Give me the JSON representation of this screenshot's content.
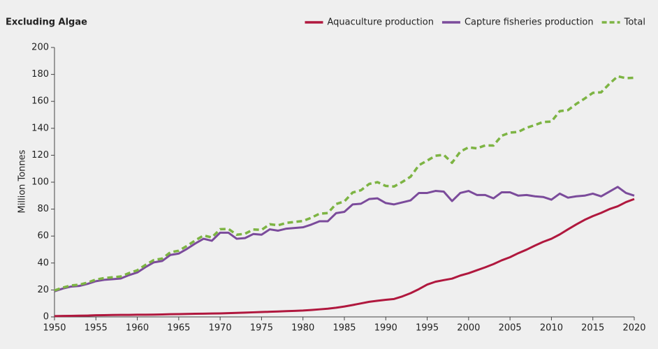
{
  "chart_data": {
    "type": "line",
    "title": "Excluding Algae",
    "ylabel": "Million Tonnes",
    "x": [
      1950,
      1951,
      1952,
      1953,
      1954,
      1955,
      1956,
      1957,
      1958,
      1959,
      1960,
      1961,
      1962,
      1963,
      1964,
      1965,
      1966,
      1967,
      1968,
      1969,
      1970,
      1971,
      1972,
      1973,
      1974,
      1975,
      1976,
      1977,
      1978,
      1979,
      1980,
      1981,
      1982,
      1983,
      1984,
      1985,
      1986,
      1987,
      1988,
      1989,
      1990,
      1991,
      1992,
      1993,
      1994,
      1995,
      1996,
      1997,
      1998,
      1999,
      2000,
      2001,
      2002,
      2003,
      2004,
      2005,
      2006,
      2007,
      2008,
      2009,
      2010,
      2011,
      2012,
      2013,
      2014,
      2015,
      2016,
      2017,
      2018,
      2019,
      2020
    ],
    "series": [
      {
        "name": "Aquaculture production",
        "color": "#b0183e",
        "dashed": false,
        "values": [
          0.6,
          0.7,
          0.8,
          0.9,
          1.0,
          1.2,
          1.3,
          1.4,
          1.5,
          1.5,
          1.6,
          1.6,
          1.7,
          1.8,
          2.0,
          2.1,
          2.2,
          2.3,
          2.4,
          2.5,
          2.6,
          2.8,
          3.0,
          3.2,
          3.4,
          3.6,
          3.8,
          4.0,
          4.3,
          4.5,
          4.7,
          5.1,
          5.6,
          6.1,
          6.8,
          7.7,
          8.8,
          10.0,
          11.2,
          12.0,
          12.7,
          13.3,
          15.2,
          17.6,
          20.6,
          24.0,
          26.1,
          27.3,
          28.4,
          30.7,
          32.4,
          34.6,
          36.8,
          39.2,
          42.0,
          44.3,
          47.3,
          49.9,
          52.9,
          55.7,
          58.0,
          61.2,
          65.0,
          68.6,
          72.0,
          74.8,
          77.2,
          80.0,
          82.1,
          85.2,
          87.5
        ]
      },
      {
        "name": "Capture fisheries production",
        "color": "#7b4b9b",
        "dashed": false,
        "values": [
          19,
          21,
          22.5,
          23,
          24.5,
          26.5,
          27.5,
          28,
          28.5,
          31,
          33,
          37,
          40.5,
          41.5,
          46,
          47,
          50.5,
          54.5,
          58,
          56.5,
          62.5,
          62.5,
          58,
          58.5,
          61.5,
          61,
          65,
          64,
          65.5,
          66,
          66.5,
          68.5,
          71,
          71,
          77,
          78,
          83.5,
          84,
          87.5,
          88,
          84.5,
          83.5,
          85,
          86.5,
          92,
          92,
          93.5,
          93,
          86,
          92,
          93.5,
          90.5,
          90.5,
          88,
          92.5,
          92.5,
          90,
          90.5,
          89.5,
          89,
          87,
          91.5,
          88.5,
          89.5,
          90,
          91.5,
          89.5,
          93,
          96.5,
          92,
          90
        ]
      },
      {
        "name": "Total",
        "color": "#7db443",
        "dashed": true,
        "values": [
          19.6,
          21.7,
          23.3,
          23.9,
          25.5,
          27.7,
          28.8,
          29.4,
          30.0,
          32.5,
          34.6,
          38.6,
          42.2,
          43.3,
          48.0,
          49.1,
          52.7,
          56.8,
          60.4,
          59.0,
          65.1,
          65.3,
          61.0,
          61.7,
          64.9,
          64.6,
          68.8,
          68.0,
          69.8,
          70.5,
          71.2,
          73.6,
          76.6,
          77.1,
          83.8,
          85.7,
          92.3,
          94.0,
          98.7,
          100.0,
          97.2,
          96.8,
          100.2,
          104.1,
          112.6,
          116.0,
          119.6,
          120.3,
          114.4,
          122.7,
          125.9,
          125.1,
          127.3,
          127.2,
          134.5,
          136.8,
          137.3,
          140.4,
          142.4,
          144.7,
          145.0,
          152.7,
          153.5,
          158.1,
          162.0,
          166.3,
          166.7,
          173.0,
          178.6,
          177.2,
          177.5
        ]
      }
    ],
    "xlim": [
      1950,
      2020
    ],
    "xticks": [
      1950,
      1955,
      1960,
      1965,
      1970,
      1975,
      1980,
      1985,
      1990,
      1995,
      2000,
      2005,
      2010,
      2015,
      2020
    ],
    "ylim": [
      0,
      200
    ],
    "yticks": [
      0,
      20,
      40,
      60,
      80,
      100,
      120,
      140,
      160,
      180,
      200
    ],
    "grid": false,
    "legend": "top-right"
  }
}
